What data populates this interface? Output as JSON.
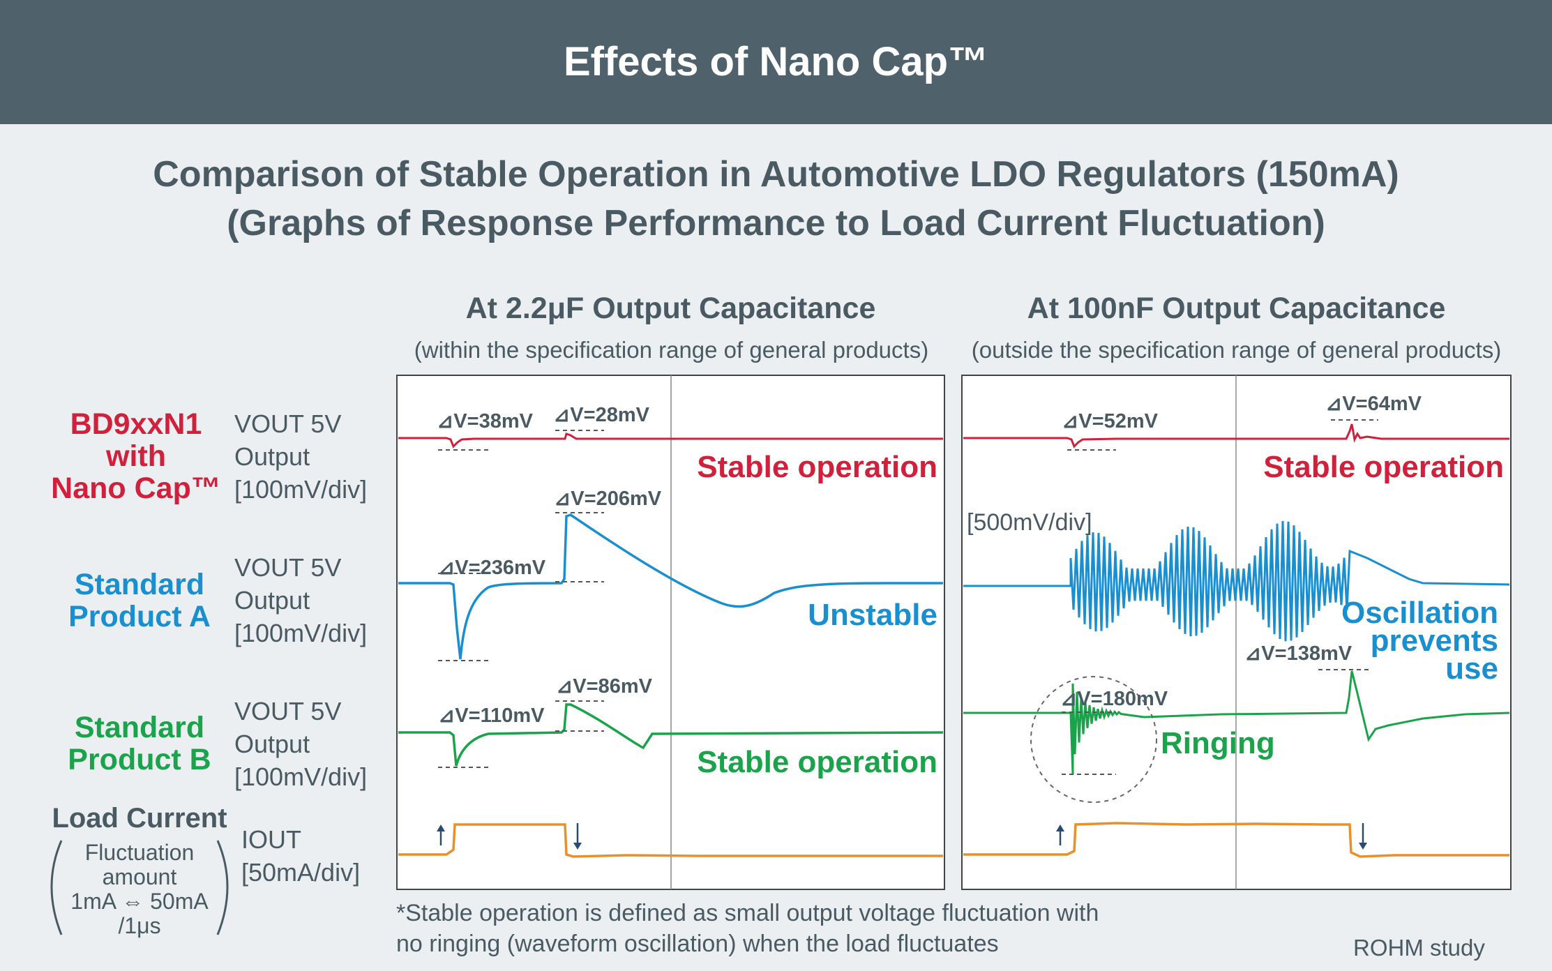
{
  "header": {
    "title": "Effects of Nano Cap™"
  },
  "subtitle": {
    "line1": "Comparison of Stable Operation in Automotive LDO Regulators (150mA)",
    "line2": "(Graphs of Response Performance to Load Current Fluctuation)"
  },
  "rows": [
    {
      "name_lines": [
        "BD9xxN1",
        "with",
        "Nano Cap™"
      ],
      "axis_lines": [
        "VOUT 5V",
        "Output",
        "[100mV/div]"
      ],
      "color": "#d0203c"
    },
    {
      "name_lines": [
        "Standard",
        "Product A"
      ],
      "axis_lines": [
        "VOUT 5V",
        "Output",
        "[100mV/div]"
      ],
      "color": "#1a8fd0"
    },
    {
      "name_lines": [
        "Standard",
        "Product B"
      ],
      "axis_lines": [
        "VOUT 5V",
        "Output",
        "[100mV/div]"
      ],
      "color": "#1aa34a"
    },
    {
      "name_lines": [
        "Load Current"
      ],
      "axis_lines": [
        "IOUT",
        "[50mA/div]"
      ],
      "color": "#e8902a"
    }
  ],
  "load_note": {
    "lines": [
      "Fluctuation",
      "amount",
      "1mA ⇔ 50mA",
      "/1μs"
    ]
  },
  "chart_data": [
    {
      "type": "line",
      "title": "At 2.2μF Output Capacitance",
      "subtitle": "(within the specification range of general products)",
      "series": [
        {
          "name": "BD9xxN1 with Nano Cap™",
          "annotations": [
            "⊿V=38mV",
            "⊿V=28mV"
          ],
          "result": "Stable operation"
        },
        {
          "name": "Standard Product A",
          "annotations": [
            "⊿V=236mV",
            "⊿V=206mV"
          ],
          "result": "Unstable"
        },
        {
          "name": "Standard Product B",
          "annotations": [
            "⊿V=110mV",
            "⊿V=86mV"
          ],
          "result": "Stable operation"
        },
        {
          "name": "Load Current",
          "values_mA": [
            1,
            50,
            1
          ]
        }
      ]
    },
    {
      "type": "line",
      "title": "At 100nF Output Capacitance",
      "subtitle": "(outside the specification range of general products)",
      "series": [
        {
          "name": "BD9xxN1 with Nano Cap™",
          "annotations": [
            "⊿V=52mV",
            "⊿V=64mV"
          ],
          "result": "Stable operation"
        },
        {
          "name": "Standard Product A",
          "scale_note": "[500mV/div]",
          "result_lines": [
            "Oscillation",
            "prevents",
            "use"
          ]
        },
        {
          "name": "Standard Product B",
          "annotations": [
            "⊿V=180mV",
            "⊿V=138mV"
          ],
          "result": "Ringing"
        },
        {
          "name": "Load Current",
          "values_mA": [
            1,
            50,
            1
          ]
        }
      ]
    }
  ],
  "footnote": {
    "line1": "*Stable operation is defined as small output voltage fluctuation with",
    "line2": " no ringing (waveform oscillation) when the load fluctuates"
  },
  "source": "ROHM study"
}
